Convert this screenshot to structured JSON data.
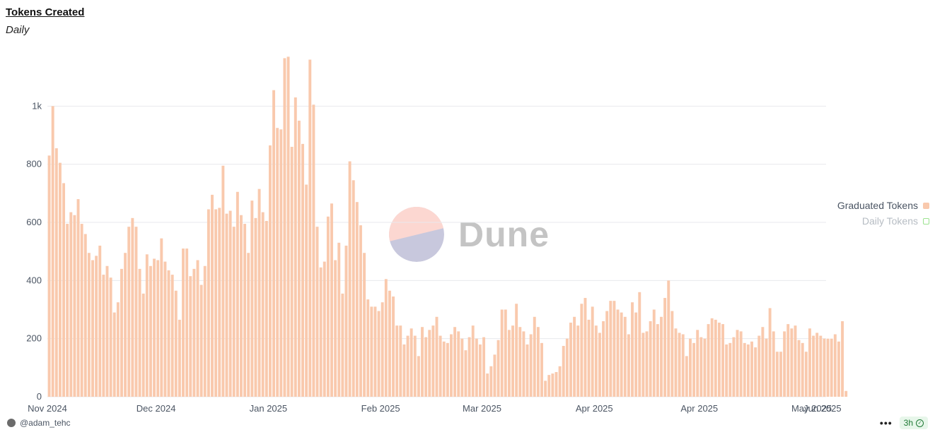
{
  "header": {
    "title": "Tokens Created",
    "subtitle": "Daily"
  },
  "legend": [
    {
      "label": "Graduated Tokens",
      "color": "#f9c9ad",
      "active": true
    },
    {
      "label": "Daily Tokens",
      "color": "#9be28f",
      "active": false
    }
  ],
  "watermark": {
    "text": "Dune"
  },
  "footer": {
    "author": "@adam_tehc",
    "refresh": "3h",
    "more_icon": "more-horizontal-icon",
    "status_icon": "check-circle-icon"
  },
  "chart_data": {
    "type": "bar",
    "title": "Tokens Created",
    "subtitle": "Daily",
    "bar_color": "#f9c9ad",
    "grid": true,
    "ylim": [
      0,
      1200
    ],
    "yticks": [
      0,
      200,
      400,
      600,
      800,
      1000
    ],
    "ytick_labels": [
      "0",
      "200",
      "400",
      "600",
      "800",
      "1k"
    ],
    "xlim": [
      "2024-11-01",
      "2025-06-03"
    ],
    "xticks": [
      {
        "date": "2024-11-01",
        "label": "Nov 2024"
      },
      {
        "date": "2024-12-01",
        "label": "Dec 2024"
      },
      {
        "date": "2025-01-01",
        "label": "Jan 2025"
      },
      {
        "date": "2025-02-01",
        "label": "Feb 2025"
      },
      {
        "date": "2025-03-01",
        "label": "Mar 2025"
      },
      {
        "date": "2025-04-01",
        "label": "Apr 2025"
      },
      {
        "date": "2025-04-30",
        "label": "Apr 2025"
      },
      {
        "date": "2025-05-31",
        "label": "May 2025"
      },
      {
        "date": "2025-06-03",
        "label": "Jun 2025"
      }
    ],
    "series": [
      {
        "name": "Graduated Tokens",
        "start_date": "2024-11-01",
        "values": [
          830,
          1000,
          855,
          805,
          735,
          595,
          635,
          625,
          680,
          595,
          560,
          495,
          470,
          485,
          520,
          420,
          450,
          410,
          290,
          325,
          440,
          495,
          585,
          615,
          585,
          440,
          355,
          490,
          450,
          475,
          470,
          545,
          465,
          435,
          420,
          365,
          265,
          510,
          510,
          415,
          440,
          470,
          385,
          450,
          645,
          695,
          645,
          650,
          795,
          630,
          640,
          585,
          705,
          625,
          595,
          495,
          675,
          615,
          715,
          635,
          605,
          865,
          1055,
          925,
          920,
          1165,
          1170,
          860,
          1030,
          950,
          870,
          730,
          1160,
          1005,
          585,
          445,
          465,
          620,
          665,
          470,
          530,
          355,
          520,
          810,
          745,
          670,
          590,
          495,
          335,
          310,
          310,
          295,
          325,
          405,
          365,
          345,
          245,
          245,
          180,
          210,
          235,
          210,
          140,
          240,
          205,
          230,
          245,
          275,
          210,
          190,
          185,
          215,
          240,
          225,
          200,
          160,
          205,
          245,
          200,
          180,
          205,
          80,
          105,
          145,
          195,
          300,
          300,
          230,
          245,
          320,
          240,
          225,
          180,
          215,
          275,
          240,
          185,
          55,
          75,
          80,
          85,
          105,
          175,
          200,
          255,
          275,
          245,
          320,
          340,
          265,
          310,
          245,
          220,
          260,
          295,
          330,
          330,
          300,
          290,
          275,
          215,
          325,
          290,
          360,
          220,
          225,
          260,
          300,
          250,
          275,
          340,
          400,
          295,
          235,
          220,
          215,
          140,
          200,
          185,
          230,
          205,
          200,
          250,
          270,
          265,
          255,
          250,
          180,
          185,
          205,
          230,
          225,
          185,
          180,
          190,
          170,
          210,
          240,
          200,
          305,
          225,
          155,
          155,
          225,
          250,
          235,
          245,
          195,
          185,
          155,
          235,
          210,
          220,
          210,
          200,
          200,
          200,
          215,
          190,
          260,
          20
        ]
      },
      {
        "name": "Daily Tokens",
        "values": []
      }
    ]
  }
}
